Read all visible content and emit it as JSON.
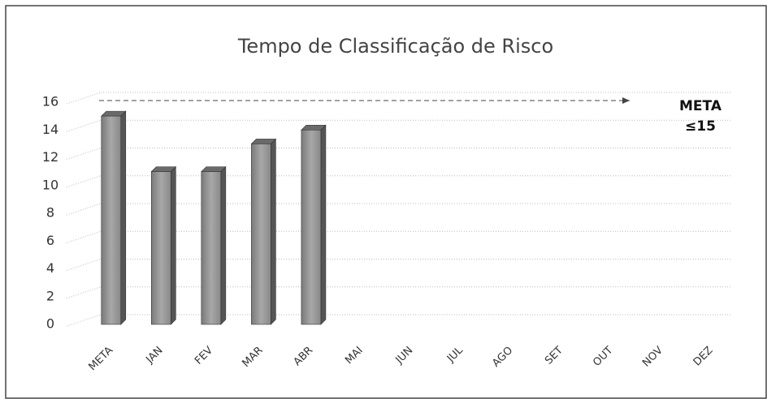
{
  "chart_data": {
    "type": "bar3d",
    "title": "Tempo de Classificação de Risco",
    "categories": [
      "META",
      "JAN",
      "FEV",
      "MAR",
      "ABR",
      "MAI",
      "JUN",
      "JUL",
      "AGO",
      "SET",
      "OUT",
      "NOV",
      "DEZ"
    ],
    "values": [
      15,
      11,
      11,
      13,
      14,
      null,
      null,
      null,
      null,
      null,
      null,
      null,
      null
    ],
    "color": "#8c8c8c",
    "ylim": [
      0,
      16
    ],
    "yticks": [
      0,
      2,
      4,
      6,
      8,
      10,
      12,
      14,
      16
    ],
    "grid": true,
    "annotations": [
      "META",
      "≤15"
    ]
  }
}
